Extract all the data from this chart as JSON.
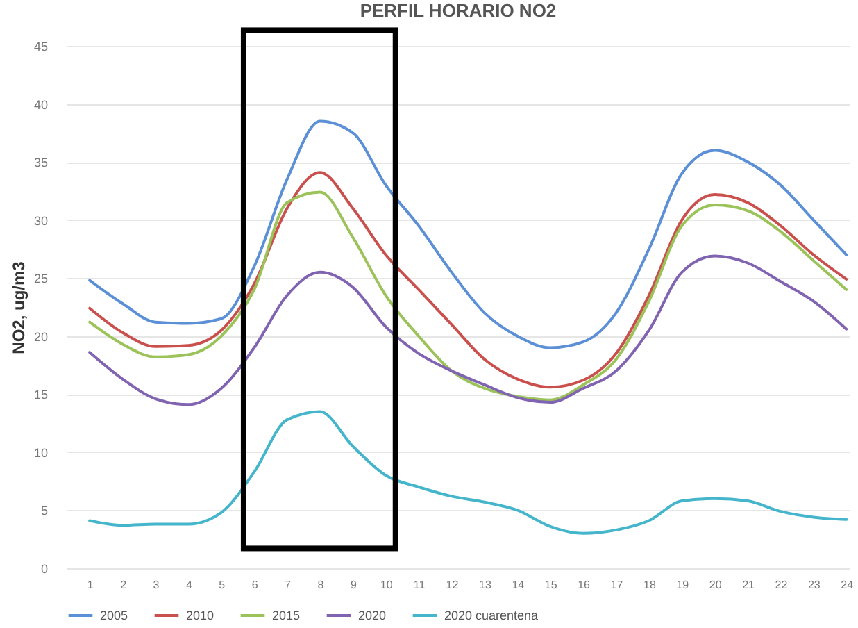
{
  "chart_data": {
    "type": "line",
    "title": "PERFIL HORARIO NO2",
    "ylabel": "NO2, ug/m3",
    "x": [
      1,
      2,
      3,
      4,
      5,
      6,
      7,
      8,
      9,
      10,
      11,
      12,
      13,
      14,
      15,
      16,
      17,
      18,
      19,
      20,
      21,
      22,
      23,
      24
    ],
    "xlim": [
      0.3,
      24.1
    ],
    "xticks": [
      1,
      2,
      3,
      4,
      5,
      6,
      7,
      8,
      9,
      10,
      11,
      12,
      13,
      14,
      15,
      16,
      17,
      18,
      19,
      20,
      21,
      22,
      23,
      24
    ],
    "ylim": [
      0,
      45
    ],
    "yticks": [
      0,
      5,
      10,
      15,
      20,
      25,
      30,
      35,
      40,
      45
    ],
    "grid": "y",
    "legend": "bottom",
    "marker": "none",
    "line_style": "solid",
    "series": [
      {
        "name": "2005",
        "color": "#5b8fd6",
        "values": [
          24.8,
          22.8,
          21.2,
          21.1,
          21.5,
          26,
          33.5,
          38.5,
          37.5,
          33,
          29.5,
          25.5,
          22,
          20,
          19,
          19.5,
          22,
          27.5,
          34,
          36,
          35,
          33,
          30,
          27
        ]
      },
      {
        "name": "2010",
        "color": "#c9504d",
        "values": [
          22.4,
          20.3,
          19.1,
          19.2,
          20.5,
          24.5,
          31,
          34.1,
          31,
          27,
          24,
          21,
          18,
          16.3,
          15.6,
          16.2,
          18.5,
          23.5,
          30,
          32.2,
          31.5,
          29.5,
          27,
          24.9
        ]
      },
      {
        "name": "2015",
        "color": "#9bc35a",
        "values": [
          21.2,
          19.3,
          18.2,
          18.4,
          20,
          24,
          31.5,
          32.4,
          28.5,
          23.5,
          20,
          17,
          15.5,
          14.8,
          14.5,
          15.8,
          18,
          23,
          29.5,
          31.3,
          30.8,
          29,
          26.5,
          24
        ]
      },
      {
        "name": "2020",
        "color": "#8064b2",
        "values": [
          18.6,
          16.3,
          14.6,
          14.1,
          15.5,
          19,
          23.5,
          25.5,
          24.2,
          20.8,
          18.5,
          17,
          15.8,
          14.7,
          14.3,
          15.5,
          17,
          20.5,
          25.5,
          26.9,
          26.3,
          24.7,
          23,
          20.6
        ]
      },
      {
        "name": "2020 cuarentena",
        "color": "#45b5cc",
        "values": [
          4.1,
          3.7,
          3.8,
          3.8,
          4.8,
          8.3,
          12.8,
          13.5,
          10.5,
          8,
          7,
          6.2,
          5.7,
          5,
          3.6,
          3,
          3.3,
          4.1,
          5.8,
          6,
          5.8,
          4.9,
          4.4,
          4.2
        ]
      }
    ]
  }
}
